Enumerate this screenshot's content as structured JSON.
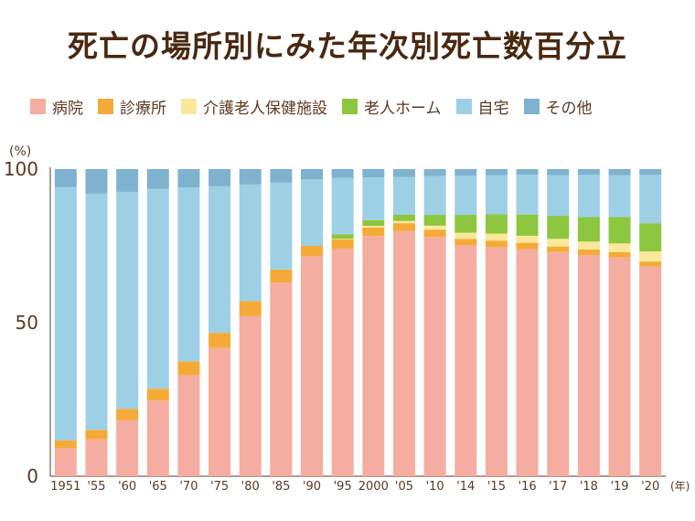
{
  "chart_data": {
    "type": "bar",
    "stacked": true,
    "title": "死亡の場所別にみた年次別死亡数百分立",
    "ylabel": "(%)",
    "xlabel": "(年)",
    "ylim": [
      0,
      100
    ],
    "yticks": [
      "0",
      "50",
      "100"
    ],
    "categories": [
      "1951",
      "'55",
      "'60",
      "'65",
      "'70",
      "'75",
      "'80",
      "'85",
      "'90",
      "'95",
      "2000",
      "'05",
      "'10",
      "'14",
      "'15",
      "'16",
      "'17",
      "'18",
      "'19",
      "'20"
    ],
    "series": [
      {
        "name": "病院",
        "color": "#f4ada0",
        "values": [
          9.1,
          12.0,
          18.2,
          24.6,
          32.9,
          41.8,
          52.1,
          63.0,
          71.6,
          74.1,
          78.2,
          79.8,
          77.9,
          75.2,
          74.6,
          73.9,
          73.0,
          72.0,
          71.3,
          68.3
        ]
      },
      {
        "name": "診療所",
        "color": "#f5aa38",
        "values": [
          2.6,
          3.1,
          3.7,
          3.9,
          4.5,
          4.9,
          4.9,
          4.3,
          3.4,
          3.0,
          2.8,
          2.6,
          2.4,
          2.1,
          2.1,
          2.1,
          1.8,
          1.8,
          1.7,
          1.6
        ]
      },
      {
        "name": "介護老人保健施設",
        "color": "#fbe89a",
        "values": [
          0,
          0,
          0,
          0,
          0,
          0,
          0,
          0,
          0,
          0.2,
          0.5,
          0.7,
          1.3,
          2.0,
          2.3,
          2.3,
          2.5,
          2.6,
          2.8,
          3.3
        ]
      },
      {
        "name": "老人ホーム",
        "color": "#8dc63f",
        "values": [
          0,
          0,
          0,
          0,
          0,
          0,
          0,
          0,
          0,
          1.5,
          1.9,
          2.1,
          3.5,
          5.8,
          6.3,
          6.9,
          7.5,
          8.0,
          8.6,
          9.2
        ]
      },
      {
        "name": "自宅",
        "color": "#9dd0e5",
        "values": [
          82.5,
          76.9,
          70.7,
          65.0,
          56.6,
          47.7,
          38.0,
          28.3,
          21.7,
          18.3,
          13.9,
          12.2,
          12.6,
          12.8,
          12.7,
          13.0,
          13.2,
          13.7,
          13.6,
          15.7
        ]
      },
      {
        "name": "その他",
        "color": "#7fb2cf",
        "values": [
          5.8,
          8.0,
          7.4,
          6.5,
          6.0,
          5.6,
          5.0,
          4.4,
          3.3,
          2.9,
          2.7,
          2.6,
          2.3,
          2.1,
          2.0,
          1.8,
          2.0,
          1.9,
          2.0,
          1.9
        ]
      }
    ]
  }
}
